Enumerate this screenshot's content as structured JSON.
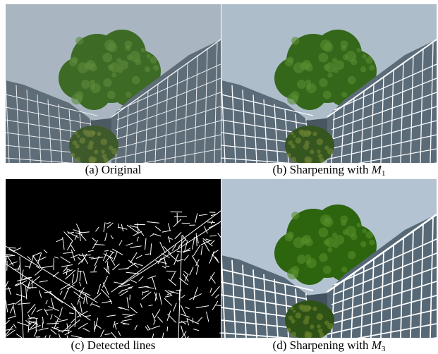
{
  "figure": {
    "panels": [
      {
        "id": "a",
        "caption": "(a) Original",
        "caption_italic": "",
        "caption_sub": "",
        "style": "photo",
        "sharpen": 0
      },
      {
        "id": "b",
        "caption": "(b) Sharpening with ",
        "caption_italic": "M",
        "caption_sub": "1",
        "style": "photo",
        "sharpen": 1
      },
      {
        "id": "c",
        "caption": "(c) Detected lines",
        "caption_italic": "",
        "caption_sub": "",
        "style": "lines",
        "sharpen": 0
      },
      {
        "id": "d",
        "caption": "(d) Sharpening with ",
        "caption_italic": "M",
        "caption_sub": "3",
        "style": "photo",
        "sharpen": 2
      }
    ],
    "colors": {
      "sky": "#a9b6c2",
      "tree": "#3d6a25",
      "tree_light": "#5e8a3a",
      "glass": "#5f6d78",
      "frame": "#e9edf0",
      "bush": "#3e5a2a",
      "lines_bg": "#000000",
      "lines_fg": "#ffffff"
    }
  }
}
